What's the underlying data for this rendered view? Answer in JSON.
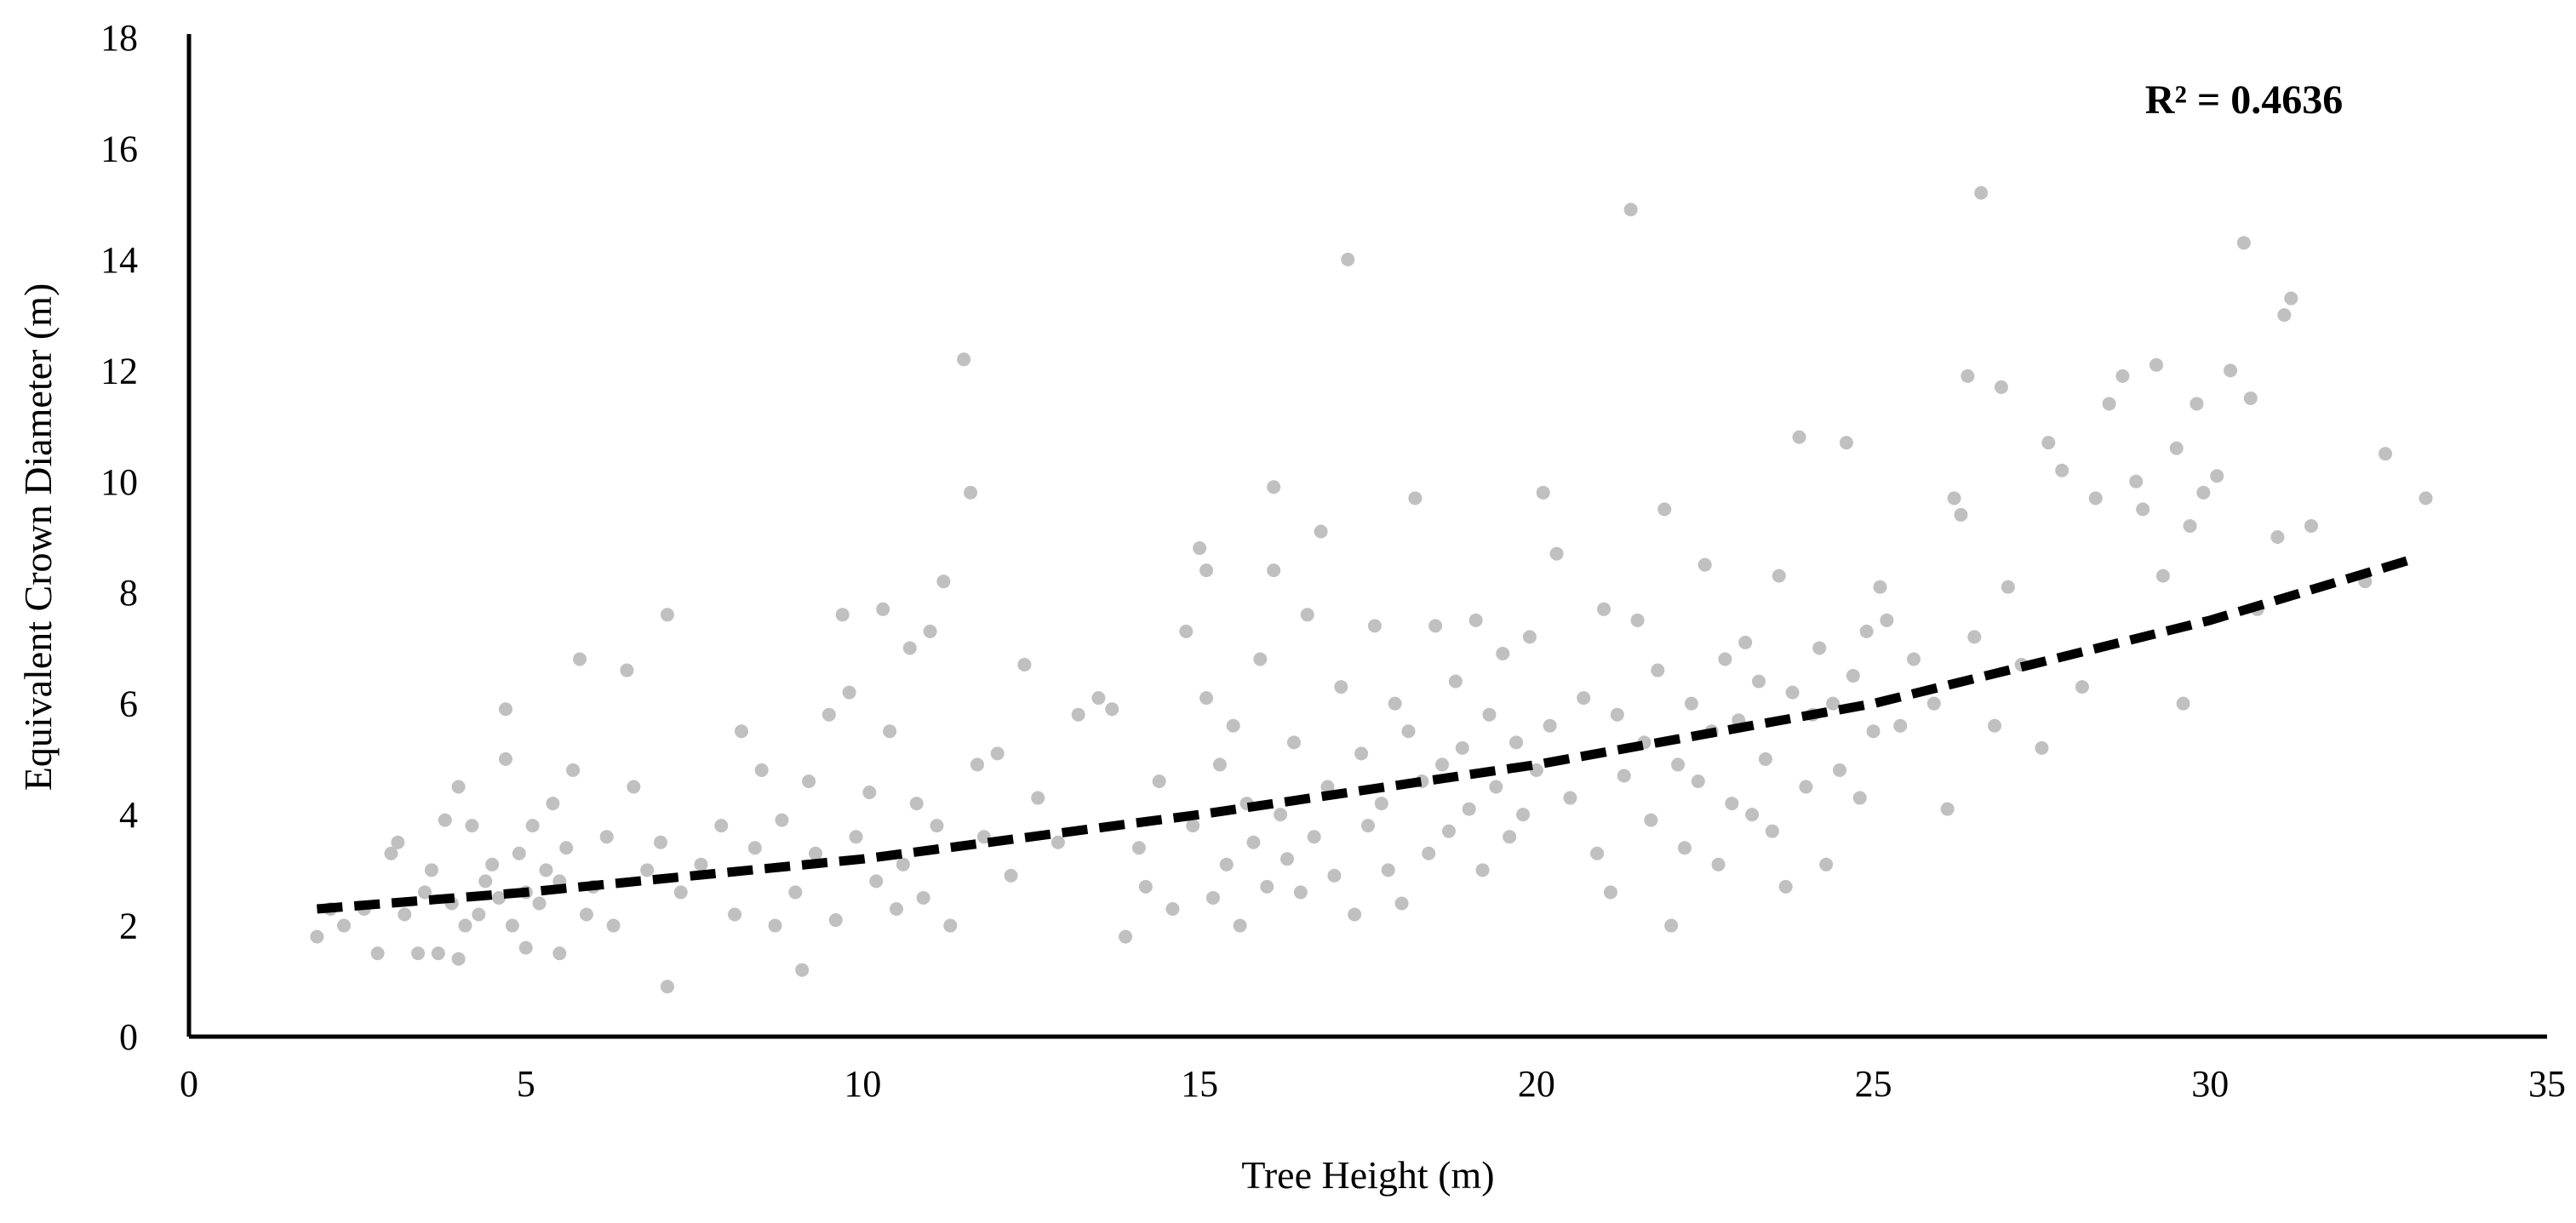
{
  "chart_data": {
    "type": "scatter",
    "title": "",
    "xlabel": "Tree Height (m)",
    "ylabel": "Equivalent Crown Diameter (m)",
    "xlim": [
      0,
      35
    ],
    "ylim": [
      0,
      18
    ],
    "x_ticks": [
      "0",
      "5",
      "10",
      "15",
      "20",
      "25",
      "30",
      "35"
    ],
    "y_ticks": [
      "0",
      "2",
      "4",
      "6",
      "8",
      "10",
      "12",
      "14",
      "16",
      "18"
    ],
    "grid": false,
    "legend": "none",
    "annotation": "R² = 0.4636",
    "colors": {
      "points": "#c0c0c0",
      "trendline": "#000000",
      "axes": "#000000"
    },
    "trendline": {
      "type": "exponential",
      "style": "dashed",
      "x": [
        1.9,
        5,
        10,
        15,
        20,
        25,
        30,
        33
      ],
      "y": [
        2.3,
        2.6,
        3.2,
        4.0,
        4.9,
        6.0,
        7.5,
        8.6
      ]
    },
    "series": [
      {
        "points": [
          [
            1.9,
            1.8
          ],
          [
            2.1,
            2.3
          ],
          [
            2.3,
            2.0
          ],
          [
            2.6,
            2.3
          ],
          [
            2.8,
            1.5
          ],
          [
            3.0,
            3.3
          ],
          [
            3.1,
            3.5
          ],
          [
            3.2,
            2.2
          ],
          [
            3.4,
            1.5
          ],
          [
            3.5,
            2.6
          ],
          [
            3.6,
            3.0
          ],
          [
            3.7,
            1.5
          ],
          [
            3.8,
            3.9
          ],
          [
            3.9,
            2.4
          ],
          [
            4.0,
            1.4
          ],
          [
            4.0,
            4.5
          ],
          [
            4.1,
            2.0
          ],
          [
            4.2,
            3.8
          ],
          [
            4.3,
            2.2
          ],
          [
            4.4,
            2.8
          ],
          [
            4.5,
            3.1
          ],
          [
            4.6,
            2.5
          ],
          [
            4.7,
            5.9
          ],
          [
            4.7,
            5.0
          ],
          [
            4.8,
            2.0
          ],
          [
            4.9,
            3.3
          ],
          [
            5.0,
            1.6
          ],
          [
            5.0,
            2.6
          ],
          [
            5.1,
            3.8
          ],
          [
            5.2,
            2.4
          ],
          [
            5.3,
            3.0
          ],
          [
            5.4,
            4.2
          ],
          [
            5.5,
            2.8
          ],
          [
            5.5,
            1.5
          ],
          [
            5.6,
            3.4
          ],
          [
            5.7,
            4.8
          ],
          [
            5.8,
            6.8
          ],
          [
            5.9,
            2.2
          ],
          [
            6.0,
            2.7
          ],
          [
            6.2,
            3.6
          ],
          [
            6.3,
            2.0
          ],
          [
            6.5,
            6.6
          ],
          [
            6.6,
            4.5
          ],
          [
            6.8,
            3.0
          ],
          [
            7.0,
            3.5
          ],
          [
            7.1,
            7.6
          ],
          [
            7.1,
            0.9
          ],
          [
            7.3,
            2.6
          ],
          [
            7.6,
            3.1
          ],
          [
            7.9,
            3.8
          ],
          [
            8.1,
            2.2
          ],
          [
            8.2,
            5.5
          ],
          [
            8.4,
            3.4
          ],
          [
            8.5,
            4.8
          ],
          [
            8.7,
            2.0
          ],
          [
            8.8,
            3.9
          ],
          [
            9.0,
            2.6
          ],
          [
            9.1,
            1.2
          ],
          [
            9.2,
            4.6
          ],
          [
            9.3,
            3.3
          ],
          [
            9.5,
            5.8
          ],
          [
            9.6,
            2.1
          ],
          [
            9.7,
            7.6
          ],
          [
            9.8,
            6.2
          ],
          [
            9.9,
            3.6
          ],
          [
            10.1,
            4.4
          ],
          [
            10.2,
            2.8
          ],
          [
            10.3,
            7.7
          ],
          [
            10.4,
            5.5
          ],
          [
            10.5,
            2.3
          ],
          [
            10.6,
            3.1
          ],
          [
            10.7,
            7.0
          ],
          [
            10.8,
            4.2
          ],
          [
            10.9,
            2.5
          ],
          [
            11.0,
            7.3
          ],
          [
            11.1,
            3.8
          ],
          [
            11.2,
            8.2
          ],
          [
            11.3,
            2.0
          ],
          [
            11.5,
            12.2
          ],
          [
            11.6,
            9.8
          ],
          [
            11.7,
            4.9
          ],
          [
            11.8,
            3.6
          ],
          [
            12.0,
            5.1
          ],
          [
            12.2,
            2.9
          ],
          [
            12.4,
            6.7
          ],
          [
            12.6,
            4.3
          ],
          [
            12.9,
            3.5
          ],
          [
            13.2,
            5.8
          ],
          [
            13.5,
            6.1
          ],
          [
            13.7,
            5.9
          ],
          [
            13.9,
            1.8
          ],
          [
            14.1,
            3.4
          ],
          [
            14.2,
            2.7
          ],
          [
            14.4,
            4.6
          ],
          [
            14.6,
            2.3
          ],
          [
            14.8,
            7.3
          ],
          [
            14.9,
            3.8
          ],
          [
            15.0,
            8.8
          ],
          [
            15.1,
            6.1
          ],
          [
            15.1,
            8.4
          ],
          [
            15.2,
            2.5
          ],
          [
            15.3,
            4.9
          ],
          [
            15.4,
            3.1
          ],
          [
            15.5,
            5.6
          ],
          [
            15.6,
            2.0
          ],
          [
            15.7,
            4.2
          ],
          [
            15.8,
            3.5
          ],
          [
            15.9,
            6.8
          ],
          [
            16.0,
            2.7
          ],
          [
            16.1,
            9.9
          ],
          [
            16.1,
            8.4
          ],
          [
            16.2,
            4.0
          ],
          [
            16.3,
            3.2
          ],
          [
            16.4,
            5.3
          ],
          [
            16.5,
            2.6
          ],
          [
            16.6,
            7.6
          ],
          [
            16.7,
            3.6
          ],
          [
            16.8,
            9.1
          ],
          [
            16.9,
            4.5
          ],
          [
            17.0,
            2.9
          ],
          [
            17.1,
            6.3
          ],
          [
            17.2,
            14.0
          ],
          [
            17.3,
            2.2
          ],
          [
            17.4,
            5.1
          ],
          [
            17.5,
            3.8
          ],
          [
            17.6,
            7.4
          ],
          [
            17.7,
            4.2
          ],
          [
            17.8,
            3.0
          ],
          [
            17.9,
            6.0
          ],
          [
            18.0,
            2.4
          ],
          [
            18.1,
            5.5
          ],
          [
            18.2,
            9.7
          ],
          [
            18.3,
            4.6
          ],
          [
            18.4,
            3.3
          ],
          [
            18.5,
            7.4
          ],
          [
            18.6,
            4.9
          ],
          [
            18.7,
            3.7
          ],
          [
            18.8,
            6.4
          ],
          [
            18.9,
            5.2
          ],
          [
            19.0,
            4.1
          ],
          [
            19.1,
            7.5
          ],
          [
            19.2,
            3.0
          ],
          [
            19.3,
            5.8
          ],
          [
            19.4,
            4.5
          ],
          [
            19.5,
            6.9
          ],
          [
            19.6,
            3.6
          ],
          [
            19.7,
            5.3
          ],
          [
            19.8,
            4.0
          ],
          [
            19.9,
            7.2
          ],
          [
            20.0,
            4.8
          ],
          [
            20.1,
            9.8
          ],
          [
            20.2,
            5.6
          ],
          [
            20.3,
            8.7
          ],
          [
            20.5,
            4.3
          ],
          [
            20.7,
            6.1
          ],
          [
            20.9,
            3.3
          ],
          [
            21.0,
            7.7
          ],
          [
            21.1,
            2.6
          ],
          [
            21.2,
            5.8
          ],
          [
            21.3,
            4.7
          ],
          [
            21.4,
            14.9
          ],
          [
            21.5,
            7.5
          ],
          [
            21.6,
            5.3
          ],
          [
            21.7,
            3.9
          ],
          [
            21.8,
            6.6
          ],
          [
            21.9,
            9.5
          ],
          [
            22.0,
            2.0
          ],
          [
            22.1,
            4.9
          ],
          [
            22.2,
            3.4
          ],
          [
            22.3,
            6.0
          ],
          [
            22.4,
            4.6
          ],
          [
            22.5,
            8.5
          ],
          [
            22.6,
            5.5
          ],
          [
            22.7,
            3.1
          ],
          [
            22.8,
            6.8
          ],
          [
            22.9,
            4.2
          ],
          [
            23.0,
            5.7
          ],
          [
            23.1,
            7.1
          ],
          [
            23.2,
            4.0
          ],
          [
            23.3,
            6.4
          ],
          [
            23.4,
            5.0
          ],
          [
            23.5,
            3.7
          ],
          [
            23.6,
            8.3
          ],
          [
            23.7,
            2.7
          ],
          [
            23.8,
            6.2
          ],
          [
            23.9,
            10.8
          ],
          [
            24.0,
            4.5
          ],
          [
            24.1,
            5.8
          ],
          [
            24.2,
            7.0
          ],
          [
            24.3,
            3.1
          ],
          [
            24.4,
            6.0
          ],
          [
            24.5,
            4.8
          ],
          [
            24.6,
            10.7
          ],
          [
            24.7,
            6.5
          ],
          [
            24.8,
            4.3
          ],
          [
            24.9,
            7.3
          ],
          [
            25.0,
            5.5
          ],
          [
            25.1,
            8.1
          ],
          [
            25.2,
            7.5
          ],
          [
            25.4,
            5.6
          ],
          [
            25.6,
            6.8
          ],
          [
            25.9,
            6.0
          ],
          [
            26.1,
            4.1
          ],
          [
            26.2,
            9.7
          ],
          [
            26.3,
            9.4
          ],
          [
            26.4,
            11.9
          ],
          [
            26.5,
            7.2
          ],
          [
            26.6,
            15.2
          ],
          [
            26.8,
            5.6
          ],
          [
            26.9,
            11.7
          ],
          [
            27.0,
            8.1
          ],
          [
            27.2,
            6.7
          ],
          [
            27.5,
            5.2
          ],
          [
            27.6,
            10.7
          ],
          [
            27.8,
            10.2
          ],
          [
            28.1,
            6.3
          ],
          [
            28.3,
            9.7
          ],
          [
            28.5,
            11.4
          ],
          [
            28.7,
            11.9
          ],
          [
            28.9,
            10.0
          ],
          [
            29.0,
            9.5
          ],
          [
            29.2,
            12.1
          ],
          [
            29.3,
            8.3
          ],
          [
            29.5,
            10.6
          ],
          [
            29.6,
            6.0
          ],
          [
            29.7,
            9.2
          ],
          [
            29.8,
            11.4
          ],
          [
            29.9,
            9.8
          ],
          [
            30.1,
            10.1
          ],
          [
            30.3,
            12.0
          ],
          [
            30.5,
            14.3
          ],
          [
            30.6,
            11.5
          ],
          [
            30.7,
            7.7
          ],
          [
            31.0,
            9.0
          ],
          [
            31.1,
            13.0
          ],
          [
            31.2,
            13.3
          ],
          [
            31.5,
            9.2
          ],
          [
            32.3,
            8.2
          ],
          [
            32.6,
            10.5
          ],
          [
            33.2,
            9.7
          ]
        ]
      }
    ]
  }
}
